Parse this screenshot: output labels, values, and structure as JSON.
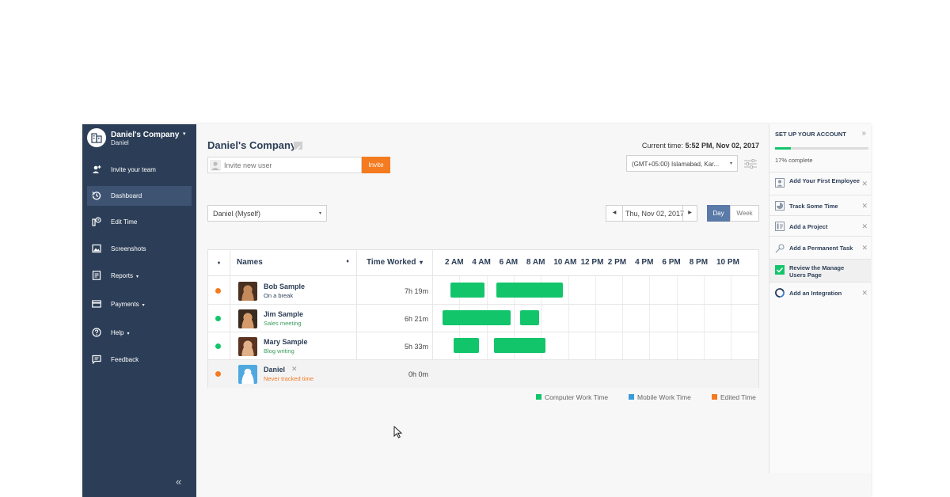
{
  "sidebar": {
    "company_name": "Daniel's Company",
    "user_name": "Daniel",
    "caret": "▾",
    "collapse": "«",
    "items": [
      {
        "label": "Invite your team",
        "icon": "add-user-icon"
      },
      {
        "label": "Dashboard",
        "icon": "dashboard-icon",
        "active": true
      },
      {
        "label": "Edit Time",
        "icon": "edit-time-icon"
      },
      {
        "label": "Screenshots",
        "icon": "screenshots-icon"
      },
      {
        "label": "Reports",
        "icon": "reports-icon",
        "dropdown": "▾"
      },
      {
        "label": "Payments",
        "icon": "payments-icon",
        "dropdown": "▾"
      },
      {
        "label": "Help",
        "icon": "help-icon",
        "dropdown": "▾"
      },
      {
        "label": "Feedback",
        "icon": "feedback-icon"
      }
    ]
  },
  "header": {
    "title": "Daniel's Company",
    "current_time_label": "Current time:",
    "current_time_value": "5:52 PM, Nov 02, 2017",
    "invite_placeholder": "Invite new user",
    "invite_button": "Invite",
    "timezone": "(GMT+05:00) Islamabad, Kar...",
    "select_arrow": "▾"
  },
  "filters": {
    "person": "Daniel (Myself)",
    "date": "Thu, Nov 02, 2017",
    "prev": "◀",
    "next": "▶",
    "tab_day": "Day",
    "tab_week": "Week"
  },
  "table": {
    "sort_col": "♦",
    "col_names": "Names",
    "col_names_sort": "♦",
    "col_worked": "Time Worked",
    "col_worked_sort": "▾",
    "hours": [
      "2 AM",
      "4 AM",
      "6 AM",
      "8 AM",
      "10 AM",
      "12 PM",
      "2 PM",
      "4 PM",
      "6 PM",
      "8 PM",
      "10 PM"
    ],
    "rows": [
      {
        "name": "Bob Sample",
        "status": "On a break",
        "worked": "7h 19m",
        "dot_color": "#f47b20",
        "status_color": "#2c3e57",
        "segments": [
          [
            1.0,
            3.5
          ],
          [
            4.4,
            9.3
          ]
        ]
      },
      {
        "name": "Jim Sample",
        "status": "Sales meeting",
        "worked": "6h 21m",
        "dot_color": "#12c56b",
        "status_color": "#3a9d5d",
        "segments": [
          [
            0.4,
            5.4
          ],
          [
            6.1,
            7.5
          ]
        ]
      },
      {
        "name": "Mary Sample",
        "status": "Blog writing",
        "worked": "5h 33m",
        "dot_color": "#12c56b",
        "status_color": "#3a9d5d",
        "segments": [
          [
            1.2,
            3.1
          ],
          [
            4.2,
            8.0
          ]
        ]
      },
      {
        "name": "Daniel",
        "status": "Never tracked time",
        "worked": "0h 0m",
        "dot_color": "#f47b20",
        "status_color": "#f47b20",
        "remove": "✕",
        "segments": []
      }
    ]
  },
  "legend": {
    "items": [
      {
        "label": "Computer Work Time",
        "color": "#12c56b"
      },
      {
        "label": "Mobile Work Time",
        "color": "#3a9bd9"
      },
      {
        "label": "Edited Time",
        "color": "#f47b20"
      }
    ]
  },
  "setup": {
    "title": "SET UP YOUR ACCOUNT",
    "close": "»",
    "progress": 0.17,
    "percent_text": "17% complete",
    "tasks": [
      {
        "label": "Add Your First Employee",
        "icon": "employee-icon",
        "done": false,
        "x": "✕"
      },
      {
        "label": "Track Some Time",
        "icon": "clock-icon",
        "done": false,
        "x": "✕"
      },
      {
        "label": "Add a Project",
        "icon": "project-icon",
        "done": false,
        "x": "✕"
      },
      {
        "label": "Add a Permanent Task",
        "icon": "pin-icon",
        "done": false,
        "x": "✕"
      },
      {
        "label": "Review the Manage Users Page",
        "icon": "checkbox-icon",
        "done": true,
        "x": ""
      },
      {
        "label": "Add an Integration",
        "icon": "integration-icon",
        "done": false,
        "x": "✕"
      }
    ]
  },
  "colors": {
    "sidebar": "#2c3e57",
    "accent_orange": "#f47b20",
    "bar_green": "#12c56b",
    "tab_active": "#5a7aa8"
  }
}
